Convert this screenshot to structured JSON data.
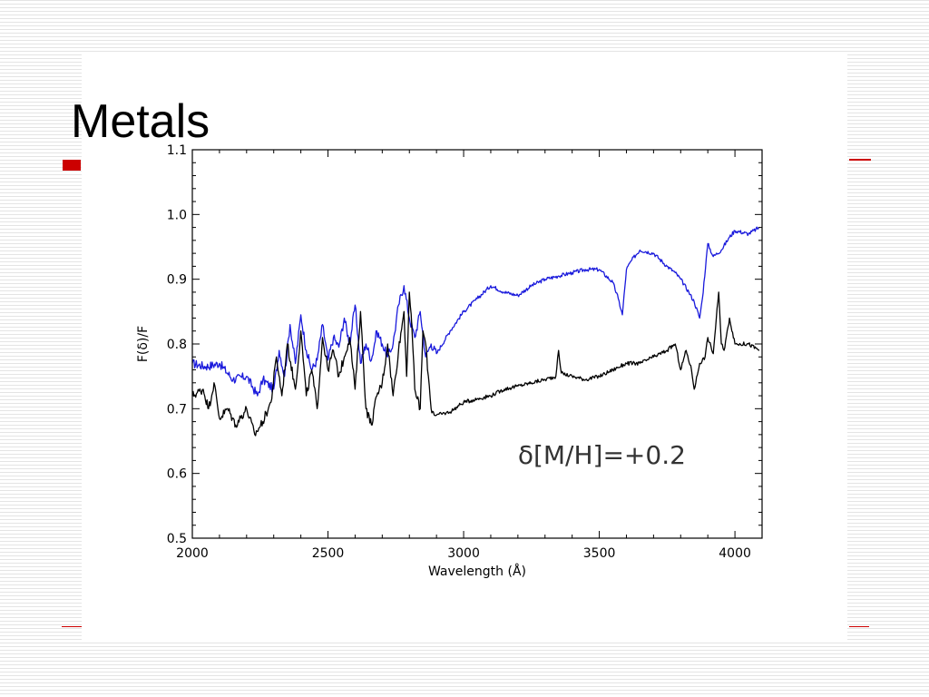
{
  "slide": {
    "title": "Metals"
  },
  "colors": {
    "accent": "#cc0000",
    "blue_series": "#1a1adc",
    "black_series": "#000000"
  },
  "chart_data": {
    "type": "line",
    "title": "",
    "xlabel": "Wavelength (Å)",
    "ylabel": "F(δ)/F",
    "xlim": [
      2000,
      4100
    ],
    "ylim": [
      0.5,
      1.1
    ],
    "xticks": [
      2000,
      2500,
      3000,
      3500,
      4000
    ],
    "xtick_labels": [
      "2000",
      "2500",
      "3000",
      "3500",
      "4000"
    ],
    "yticks": [
      0.5,
      0.6,
      0.7,
      0.8,
      0.9,
      1.0,
      1.1
    ],
    "ytick_labels": [
      "0.5",
      "0.6",
      "0.7",
      "0.8",
      "0.9",
      "1.0",
      "1.1"
    ],
    "grid": false,
    "legend": "none",
    "annotation": "δ[M/H]=+0.2",
    "series": [
      {
        "color": "#1a1adc",
        "x": [
          2000,
          2050,
          2100,
          2150,
          2200,
          2240,
          2260,
          2300,
          2320,
          2340,
          2360,
          2380,
          2400,
          2420,
          2440,
          2460,
          2480,
          2500,
          2520,
          2540,
          2560,
          2580,
          2600,
          2620,
          2640,
          2660,
          2680,
          2700,
          2720,
          2740,
          2760,
          2780,
          2800,
          2820,
          2840,
          2860,
          2880,
          2900,
          2950,
          3000,
          3050,
          3100,
          3150,
          3200,
          3250,
          3300,
          3350,
          3400,
          3450,
          3500,
          3550,
          3570,
          3585,
          3600,
          3620,
          3650,
          3700,
          3750,
          3780,
          3800,
          3830,
          3850,
          3870,
          3880,
          3900,
          3920,
          3950,
          3980,
          4000,
          4050,
          4090
        ],
        "y": [
          0.77,
          0.765,
          0.77,
          0.745,
          0.75,
          0.72,
          0.745,
          0.73,
          0.79,
          0.75,
          0.83,
          0.77,
          0.845,
          0.79,
          0.76,
          0.775,
          0.83,
          0.775,
          0.81,
          0.795,
          0.84,
          0.8,
          0.86,
          0.77,
          0.8,
          0.775,
          0.82,
          0.8,
          0.78,
          0.8,
          0.86,
          0.89,
          0.84,
          0.81,
          0.85,
          0.78,
          0.8,
          0.785,
          0.82,
          0.85,
          0.87,
          0.89,
          0.88,
          0.875,
          0.89,
          0.9,
          0.905,
          0.91,
          0.915,
          0.915,
          0.895,
          0.87,
          0.845,
          0.915,
          0.93,
          0.945,
          0.94,
          0.92,
          0.91,
          0.9,
          0.88,
          0.865,
          0.84,
          0.87,
          0.955,
          0.935,
          0.945,
          0.965,
          0.975,
          0.97,
          0.98
        ]
      },
      {
        "color": "#000000",
        "x": [
          2000,
          2040,
          2060,
          2080,
          2100,
          2130,
          2160,
          2200,
          2230,
          2260,
          2290,
          2310,
          2330,
          2350,
          2380,
          2400,
          2420,
          2440,
          2460,
          2480,
          2500,
          2520,
          2540,
          2560,
          2580,
          2600,
          2620,
          2640,
          2660,
          2680,
          2700,
          2720,
          2740,
          2760,
          2780,
          2790,
          2800,
          2810,
          2820,
          2840,
          2850,
          2860,
          2870,
          2880,
          2900,
          2950,
          3000,
          3050,
          3100,
          3150,
          3200,
          3250,
          3300,
          3340,
          3350,
          3360,
          3400,
          3450,
          3500,
          3550,
          3600,
          3650,
          3700,
          3750,
          3780,
          3800,
          3820,
          3840,
          3850,
          3870,
          3890,
          3900,
          3920,
          3940,
          3950,
          3960,
          3980,
          4000,
          4050,
          4090
        ],
        "y": [
          0.72,
          0.73,
          0.7,
          0.74,
          0.685,
          0.7,
          0.675,
          0.7,
          0.66,
          0.68,
          0.71,
          0.78,
          0.72,
          0.8,
          0.73,
          0.82,
          0.72,
          0.76,
          0.7,
          0.81,
          0.76,
          0.79,
          0.75,
          0.78,
          0.81,
          0.73,
          0.85,
          0.7,
          0.675,
          0.72,
          0.74,
          0.8,
          0.72,
          0.79,
          0.85,
          0.75,
          0.88,
          0.82,
          0.73,
          0.7,
          0.82,
          0.8,
          0.75,
          0.7,
          0.69,
          0.695,
          0.71,
          0.715,
          0.72,
          0.73,
          0.735,
          0.74,
          0.745,
          0.75,
          0.79,
          0.755,
          0.75,
          0.745,
          0.75,
          0.76,
          0.77,
          0.77,
          0.78,
          0.79,
          0.8,
          0.76,
          0.79,
          0.76,
          0.73,
          0.77,
          0.78,
          0.81,
          0.785,
          0.88,
          0.8,
          0.79,
          0.84,
          0.8,
          0.8,
          0.79
        ]
      }
    ]
  }
}
